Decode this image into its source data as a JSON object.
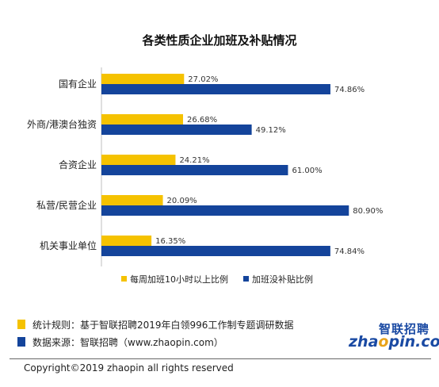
{
  "chart_data": {
    "type": "bar",
    "orientation": "horizontal",
    "title": "各类性质企业加班及补贴情况",
    "categories": [
      "国有企业",
      "外商/港澳台独资",
      "合资企业",
      "私营/民营企业",
      "机关事业单位"
    ],
    "series": [
      {
        "name": "每周加班10小时以上比例",
        "color": "#f5c200",
        "values": [
          27.02,
          26.68,
          24.21,
          20.09,
          16.35
        ],
        "labels": [
          "27.02%",
          "26.68%",
          "24.21%",
          "20.09%",
          "16.35%"
        ]
      },
      {
        "name": "加班没补贴比例",
        "color": "#14449b",
        "values": [
          74.86,
          49.12,
          61.0,
          80.9,
          74.84
        ],
        "labels": [
          "74.86%",
          "49.12%",
          "61.00%",
          "80.90%",
          "74.84%"
        ]
      }
    ],
    "xlim": [
      0,
      100
    ],
    "grid": false,
    "legend_position": "bottom"
  },
  "notes": [
    {
      "text": "统计规则：基于智联招聘2019年白领996工作制专题调研数据",
      "color": "#f5c200"
    },
    {
      "text": "数据来源：智联招聘（www.zhaopin.com）",
      "color": "#14449b"
    }
  ],
  "logo": {
    "cn": "智联招聘",
    "en_pre": "zha",
    "en_dot": "o",
    "en_post": "pin.com"
  },
  "footer": "Copyright©2019 zhaopin all rights reserved"
}
